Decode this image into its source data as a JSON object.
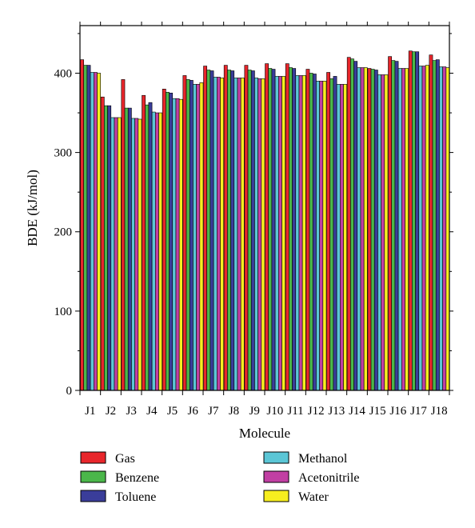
{
  "chart_data": {
    "type": "bar",
    "xlabel": "Molecule",
    "ylabel": "BDE (kJ/mol)",
    "ylim": [
      0,
      460
    ],
    "yticks": [
      0,
      100,
      200,
      300,
      400
    ],
    "grid": false,
    "legend_position": "bottom",
    "categories": [
      "J1",
      "J2",
      "J3",
      "J4",
      "J5",
      "J6",
      "J7",
      "J8",
      "J9",
      "J10",
      "J11",
      "J12",
      "J13",
      "J14",
      "J15",
      "J16",
      "J17",
      "J18"
    ],
    "series": [
      {
        "name": "Gas",
        "color": "#e8262b",
        "values": [
          417,
          370,
          392,
          372,
          380,
          397,
          409,
          410,
          410,
          412,
          412,
          405,
          401,
          420,
          406,
          421,
          428,
          423
        ]
      },
      {
        "name": "Benzene",
        "color": "#4bb74a",
        "values": [
          410,
          359,
          356,
          360,
          376,
          392,
          404,
          404,
          404,
          406,
          407,
          400,
          393,
          418,
          405,
          416,
          427,
          416
        ]
      },
      {
        "name": "Toluene",
        "color": "#3a3d9a",
        "values": [
          410,
          359,
          356,
          363,
          375,
          391,
          403,
          403,
          403,
          405,
          406,
          399,
          396,
          415,
          404,
          415,
          427,
          417
        ]
      },
      {
        "name": "Methanol",
        "color": "#5bc6d6",
        "values": [
          401,
          344,
          343,
          351,
          368,
          386,
          395,
          394,
          394,
          396,
          397,
          390,
          386,
          407,
          398,
          406,
          409,
          408
        ]
      },
      {
        "name": "Acetonitrile",
        "color": "#c13fa3",
        "values": [
          401,
          344,
          343,
          350,
          368,
          386,
          395,
          394,
          393,
          396,
          397,
          390,
          386,
          407,
          398,
          406,
          409,
          408
        ]
      },
      {
        "name": "Water",
        "color": "#f7ee1f",
        "values": [
          400,
          344,
          342,
          350,
          367,
          388,
          394,
          394,
          393,
          396,
          397,
          390,
          386,
          407,
          398,
          406,
          410,
          407
        ]
      }
    ]
  }
}
